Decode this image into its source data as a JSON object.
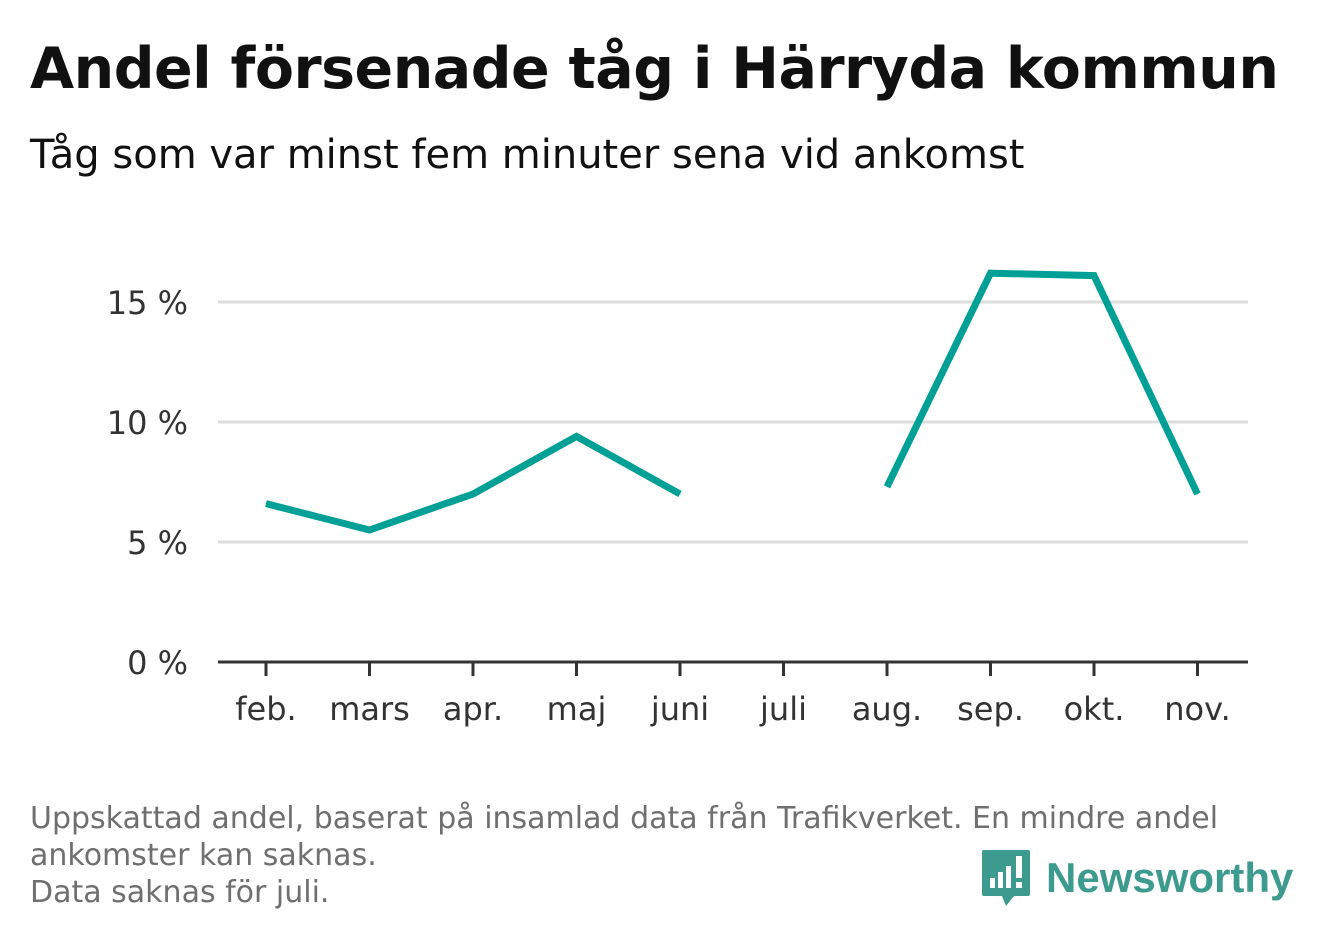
{
  "title": "Andel försenade tåg i Härryda kommun",
  "subtitle": "Tåg som var minst fem minuter sena vid ankomst",
  "footnote": {
    "line1": "Uppskattad andel, baserat på insamlad data från Trafikverket. En mindre andel",
    "line2": "ankomster kan saknas.",
    "line3": "Data saknas för juli."
  },
  "brand": {
    "name": "Newsworthy",
    "icon": "newsworthy-logo-icon",
    "color": "#3d9a8f"
  },
  "chart_data": {
    "type": "line",
    "categories": [
      "feb.",
      "mars",
      "apr.",
      "maj",
      "juni",
      "juli",
      "aug.",
      "sep.",
      "okt.",
      "nov."
    ],
    "series": [
      {
        "values": [
          6.6,
          5.5,
          7.0,
          9.4,
          7.0,
          null,
          7.3,
          16.2,
          16.1,
          7.0
        ],
        "color": "#00a096"
      }
    ],
    "yticks": [
      0,
      5,
      10,
      15
    ],
    "ytick_labels": [
      "0 %",
      "5 %",
      "10 %",
      "15 %"
    ],
    "ylim": [
      0,
      17
    ],
    "grid": true,
    "colors": {
      "grid": "#dddddd",
      "axis": "#333333",
      "text": "#333333"
    }
  }
}
